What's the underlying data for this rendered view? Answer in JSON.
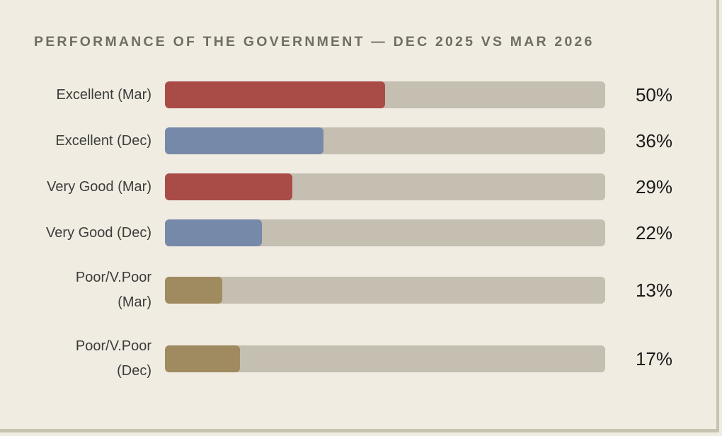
{
  "page": {
    "background_color": "#f0ece2",
    "frame_border_color": "#c8c2b0"
  },
  "chart_data": {
    "type": "bar",
    "orientation": "horizontal",
    "title": "PERFORMANCE OF THE GOVERNMENT — DEC 2025 VS MAR 2026",
    "value_range": [
      0,
      100
    ],
    "unit": "%",
    "grid": false,
    "legend": "none",
    "track_color": "#c5bfb1",
    "series_colors": {
      "Mar 2026": "#a94c47",
      "Dec 2025": "#7789a8",
      "Poor/V.Poor (both)": "#a08b60"
    },
    "categories": [
      "Excellent (Mar)",
      "Excellent (Dec)",
      "Very Good (Mar)",
      "Very Good (Dec)",
      "Poor/V.Poor (Mar)",
      "Poor/V.Poor (Dec)"
    ],
    "values": [
      50,
      36,
      29,
      22,
      13,
      17
    ],
    "rows": [
      {
        "label": [
          "Excellent (Mar)"
        ],
        "value": 50,
        "display": "50%",
        "color": "#a94c47"
      },
      {
        "label": [
          "Excellent (Dec)"
        ],
        "value": 36,
        "display": "36%",
        "color": "#7789a8"
      },
      {
        "label": [
          "Very Good (Mar)"
        ],
        "value": 29,
        "display": "29%",
        "color": "#a94c47"
      },
      {
        "label": [
          "Very Good (Dec)"
        ],
        "value": 22,
        "display": "22%",
        "color": "#7789a8"
      },
      {
        "label": [
          "Poor/V.Poor",
          "(Mar)"
        ],
        "value": 13,
        "display": "13%",
        "color": "#a08b60"
      },
      {
        "label": [
          "Poor/V.Poor",
          "(Dec)"
        ],
        "value": 17,
        "display": "17%",
        "color": "#a08b60"
      }
    ]
  }
}
